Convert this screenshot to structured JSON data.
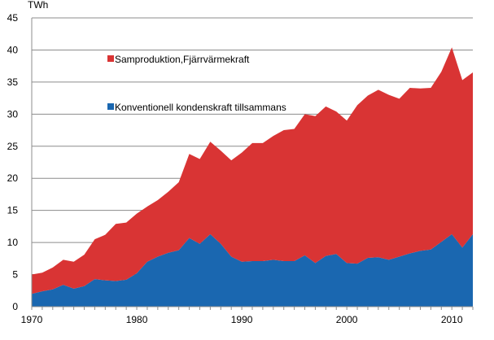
{
  "chart_data": {
    "type": "area",
    "stacked": true,
    "title": "",
    "ylabel": "TWh",
    "xlabel": "",
    "ylim": [
      0,
      45
    ],
    "yticks": [
      0,
      5,
      10,
      15,
      20,
      25,
      30,
      35,
      40,
      45
    ],
    "xlim": [
      1970,
      2012
    ],
    "xticklabels": [
      1970,
      1980,
      1990,
      2000,
      2010
    ],
    "grid": "horizontal",
    "legend": "inside-top-left",
    "x": [
      1970,
      1971,
      1972,
      1973,
      1974,
      1975,
      1976,
      1977,
      1978,
      1979,
      1980,
      1981,
      1982,
      1983,
      1984,
      1985,
      1986,
      1987,
      1988,
      1989,
      1990,
      1991,
      1992,
      1993,
      1994,
      1995,
      1996,
      1997,
      1998,
      1999,
      2000,
      2001,
      2002,
      2003,
      2004,
      2005,
      2006,
      2007,
      2008,
      2009,
      2010,
      2011,
      2012
    ],
    "series": [
      {
        "name": "Konventionell kondenskraft tillsammans",
        "color": "#1a67b0",
        "values": [
          2.0,
          2.4,
          2.7,
          3.4,
          2.8,
          3.2,
          4.3,
          4.1,
          4.0,
          4.2,
          5.2,
          7.0,
          7.8,
          8.4,
          8.8,
          10.7,
          9.8,
          11.3,
          9.8,
          7.8,
          7.0,
          7.1,
          7.1,
          7.3,
          7.1,
          7.1,
          8.0,
          6.8,
          7.9,
          8.2,
          6.8,
          6.7,
          7.6,
          7.7,
          7.3,
          7.8,
          8.3,
          8.7,
          8.9,
          10.1,
          11.3,
          9.2,
          11.3
        ]
      },
      {
        "name": "Samproduktion,Fjärrvärmekraft",
        "color": "#d93434",
        "values": [
          3.0,
          2.9,
          3.4,
          3.9,
          4.2,
          4.9,
          6.2,
          7.1,
          8.9,
          8.9,
          9.3,
          8.6,
          8.8,
          9.5,
          10.6,
          13.1,
          13.2,
          14.4,
          14.5,
          15.0,
          17.0,
          18.4,
          18.4,
          19.3,
          20.4,
          20.6,
          22.0,
          22.9,
          23.3,
          22.2,
          22.2,
          24.7,
          25.3,
          26.1,
          25.7,
          24.6,
          25.8,
          25.3,
          25.2,
          26.5,
          29.1,
          26.1,
          25.2
        ]
      }
    ]
  }
}
